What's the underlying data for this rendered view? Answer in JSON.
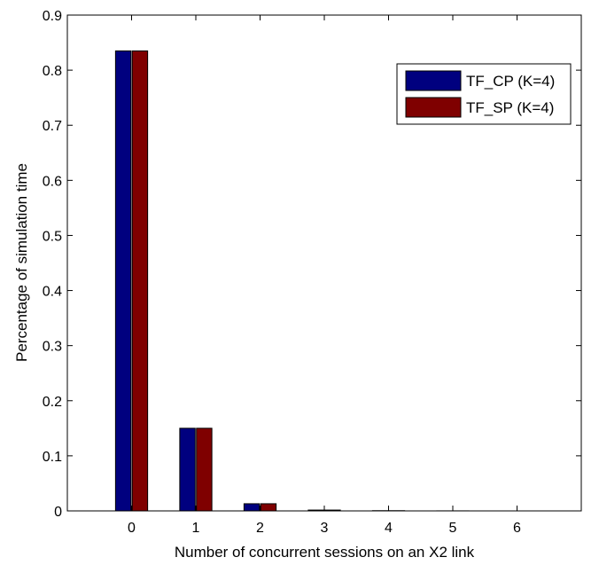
{
  "chart_data": {
    "type": "bar",
    "title": "",
    "xlabel": "Number of concurrent sessions on an X2 link",
    "ylabel": "Percentage of simulation time",
    "categories": [
      "0",
      "1",
      "2",
      "3",
      "4",
      "5",
      "6"
    ],
    "ylim": [
      0,
      0.9
    ],
    "xlim": [
      -1,
      7
    ],
    "yticks": [
      "0",
      "0.1",
      "0.2",
      "0.3",
      "0.4",
      "0.5",
      "0.6",
      "0.7",
      "0.8",
      "0.9"
    ],
    "grid": false,
    "legend_position": "top-right",
    "series": [
      {
        "name": "TF_CP (K=4)",
        "color": "#00007f",
        "values": [
          0.835,
          0.15,
          0.013,
          0.0015,
          0.0004,
          0.0001,
          0.0
        ]
      },
      {
        "name": "TF_SP (K=4)",
        "color": "#7f0000",
        "values": [
          0.835,
          0.15,
          0.013,
          0.0015,
          0.0004,
          0.0001,
          0.0
        ]
      }
    ]
  }
}
